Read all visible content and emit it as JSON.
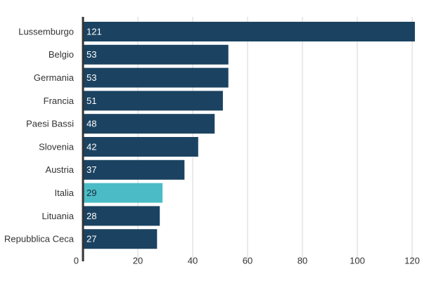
{
  "chart_data": {
    "type": "bar",
    "orientation": "horizontal",
    "categories": [
      "Lussemburgo",
      "Belgio",
      "Germania",
      "Francia",
      "Paesi Bassi",
      "Slovenia",
      "Austria",
      "Italia",
      "Lituania",
      "Repubblica Ceca"
    ],
    "values": [
      121,
      53,
      53,
      51,
      48,
      42,
      37,
      29,
      28,
      27
    ],
    "xlim": [
      0,
      121
    ],
    "x_ticks": [
      0,
      20,
      40,
      60,
      80,
      100,
      120
    ],
    "grid": true,
    "data_labels": true,
    "colors": {
      "default": "#1b4361",
      "highlight": "#4bbcc6",
      "label_default": "#ffffff",
      "label_highlight": "#1b2b3a",
      "grid": "#d6d6d6",
      "axis": "#333333"
    },
    "highlight_category": "Italia"
  }
}
